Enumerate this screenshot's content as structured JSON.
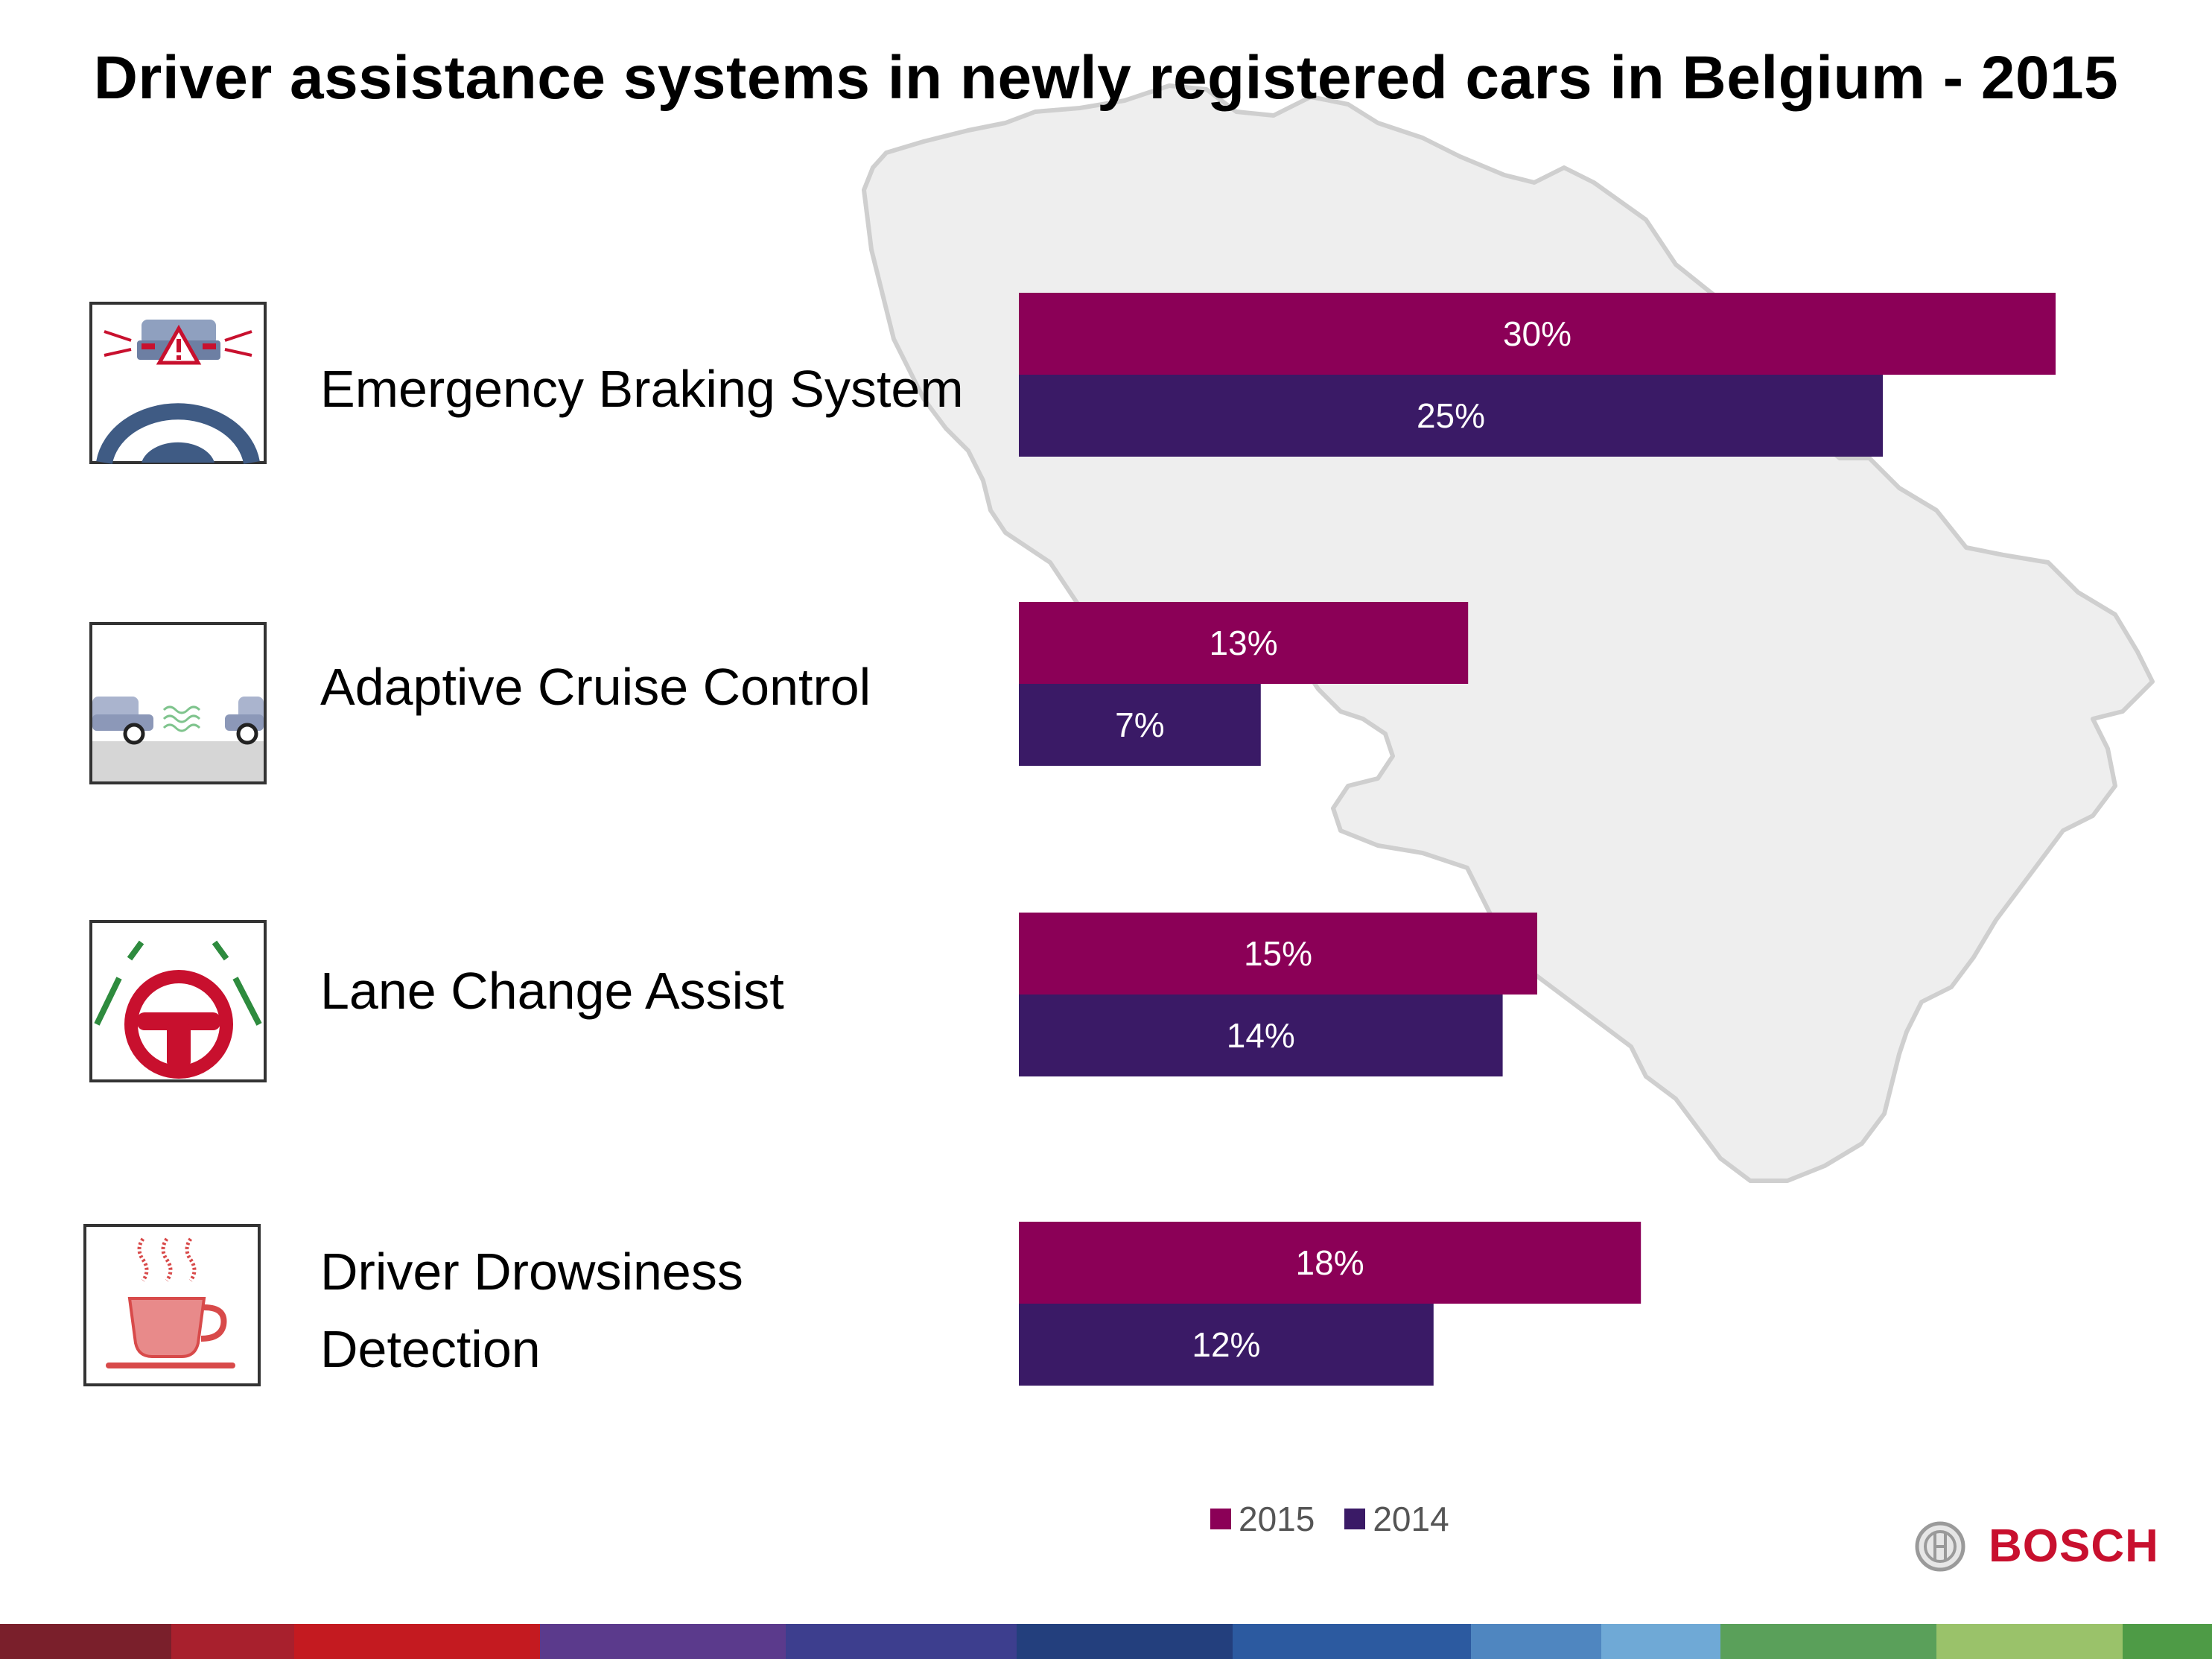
{
  "chart_data": {
    "type": "bar",
    "orientation": "horizontal",
    "title": "Driver assistance systems in newly registered cars in Belgium - 2015",
    "categories": [
      "Emergency Braking System",
      "Adaptive Cruise Control",
      "Lane Change Assist",
      "Driver Drowsiness Detection"
    ],
    "series": [
      {
        "name": "2015",
        "color": "#8b0057",
        "values": [
          30,
          13,
          15,
          18
        ],
        "labels": [
          "30%",
          "13%",
          "15%",
          "18%"
        ]
      },
      {
        "name": "2014",
        "color": "#3a1a66",
        "values": [
          25,
          7,
          14,
          12
        ],
        "labels": [
          "25%",
          "7%",
          "14%",
          "12%"
        ]
      }
    ],
    "xlim": [
      0,
      30
    ],
    "legend": "bottom",
    "grid": false
  },
  "rows": [
    {
      "label_lines": [
        "Emergency Braking System"
      ],
      "icon": "emergency-braking-icon"
    },
    {
      "label_lines": [
        "Adaptive Cruise Control"
      ],
      "icon": "adaptive-cruise-icon"
    },
    {
      "label_lines": [
        "Lane Change Assist"
      ],
      "icon": "lane-change-icon"
    },
    {
      "label_lines": [
        "Driver Drowsiness",
        "Detection"
      ],
      "icon": "drowsiness-coffee-icon"
    }
  ],
  "legend": [
    {
      "label": "2015",
      "color": "#8b0057"
    },
    {
      "label": "2014",
      "color": "#3a1a66"
    }
  ],
  "brand": {
    "name": "BOSCH",
    "color": "#c8102e",
    "icon": "bosch-armature-logo"
  },
  "background": {
    "icon": "belgium-map-outline",
    "color": "#eeeeee"
  },
  "footer_stripe_colors": [
    "#7a1f2b",
    "#a8202d",
    "#c41a20",
    "#5b3a8c",
    "#3d3e8e",
    "#233f7d",
    "#2c5aa0",
    "#4f86c0",
    "#6fa9d6",
    "#5aa05a",
    "#9ac26a",
    "#4e9b46"
  ]
}
